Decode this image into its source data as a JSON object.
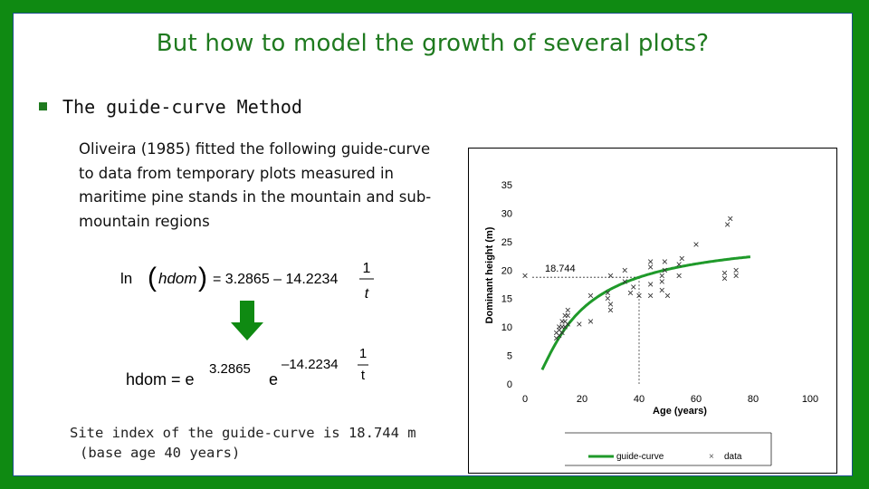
{
  "slide": {
    "title": "But how to model the growth of several plots?",
    "bullet": "The guide-curve Method",
    "paragraph": "Oliveira (1985) fitted the following guide-curve to data from temporary plots measured in maritime pine stands in the mountain and sub-mountain regions",
    "site_index_line": "Site index of the guide-curve is 18.744 m",
    "base_age_line": "(base age 40 years)",
    "colors": {
      "background": "#0f8a12",
      "title": "#1f7a1f",
      "curve": "#1f9a2a",
      "arrow": "#0f8a12"
    }
  },
  "equations": {
    "eq1": {
      "ln": "ln",
      "var": "hdom",
      "equals": "= 3.2865 – 14.2234",
      "num": "1",
      "den": "t"
    },
    "eq2": {
      "lhs": "hdom = e",
      "exp1": "3.2865",
      "e2": "e",
      "exp2": "–14.2234",
      "num": "1",
      "den": "t"
    },
    "arrow_icon": "down-arrow-icon"
  },
  "chart_data": {
    "type": "scatter",
    "xlabel": "Age (years)",
    "ylabel": "Dominant height (m)",
    "xlim": [
      0,
      100
    ],
    "ylim": [
      0,
      35
    ],
    "xticks": [
      0,
      20,
      40,
      60,
      80,
      100
    ],
    "yticks": [
      0,
      5,
      10,
      15,
      20,
      25,
      30,
      35
    ],
    "annotation": {
      "label": "18.744",
      "x": 40,
      "y": 18.744
    },
    "guide_curve": {
      "name": "guide-curve",
      "a": 3.2865,
      "b": 14.2234,
      "x_from": 6,
      "x_to": 79
    },
    "legend": {
      "curve_label": "guide-curve",
      "data_label": "data"
    },
    "points": [
      [
        0,
        19
      ],
      [
        11,
        9
      ],
      [
        11,
        8
      ],
      [
        12,
        10
      ],
      [
        12,
        9.5
      ],
      [
        12,
        8.5
      ],
      [
        13,
        11
      ],
      [
        13,
        10
      ],
      [
        13,
        9
      ],
      [
        14,
        12
      ],
      [
        14,
        11
      ],
      [
        14,
        10
      ],
      [
        15,
        13
      ],
      [
        15,
        12
      ],
      [
        15,
        10.5
      ],
      [
        19,
        10.5
      ],
      [
        23,
        11
      ],
      [
        23,
        15.5
      ],
      [
        29,
        16
      ],
      [
        29,
        15
      ],
      [
        30,
        14
      ],
      [
        30,
        13
      ],
      [
        30,
        19
      ],
      [
        35,
        20
      ],
      [
        35,
        18
      ],
      [
        37,
        16
      ],
      [
        38,
        17
      ],
      [
        40,
        15.5
      ],
      [
        44,
        21.5
      ],
      [
        44,
        20.5
      ],
      [
        44,
        17.5
      ],
      [
        44,
        15.5
      ],
      [
        48,
        18
      ],
      [
        48,
        16.5
      ],
      [
        48,
        19
      ],
      [
        49,
        21.5
      ],
      [
        49,
        20
      ],
      [
        50,
        15.5
      ],
      [
        54,
        21
      ],
      [
        54,
        19
      ],
      [
        55,
        22
      ],
      [
        60,
        24.5
      ],
      [
        70,
        18.5
      ],
      [
        70,
        19.5
      ],
      [
        71,
        28
      ],
      [
        72,
        29
      ],
      [
        74,
        19
      ],
      [
        74,
        20
      ]
    ]
  }
}
